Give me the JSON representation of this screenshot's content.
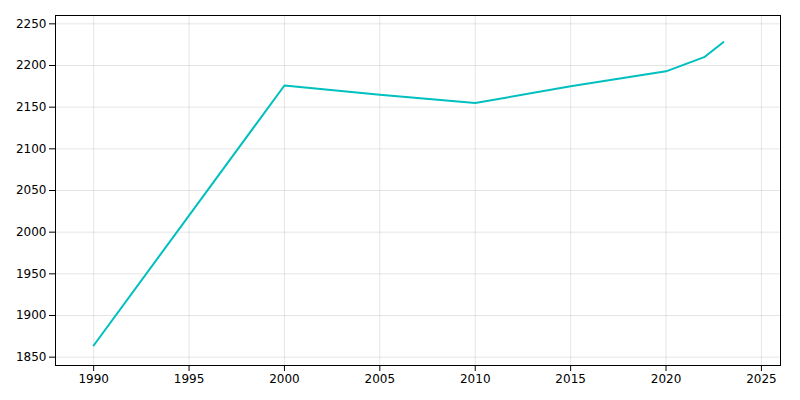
{
  "chart_data": {
    "type": "line",
    "x": [
      1990,
      2000,
      2005,
      2010,
      2015,
      2020,
      2022,
      2023
    ],
    "values": [
      1864,
      2176,
      2165,
      2155,
      2175,
      2193,
      2210,
      2228
    ],
    "color": "#00BFBF",
    "xlim": [
      1988,
      2026
    ],
    "ylim": [
      1840,
      2260
    ],
    "xticks": [
      1990,
      1995,
      2000,
      2005,
      2010,
      2015,
      2020,
      2025
    ],
    "yticks": [
      1850,
      1900,
      1950,
      2000,
      2050,
      2100,
      2150,
      2200,
      2250
    ],
    "grid": true
  }
}
